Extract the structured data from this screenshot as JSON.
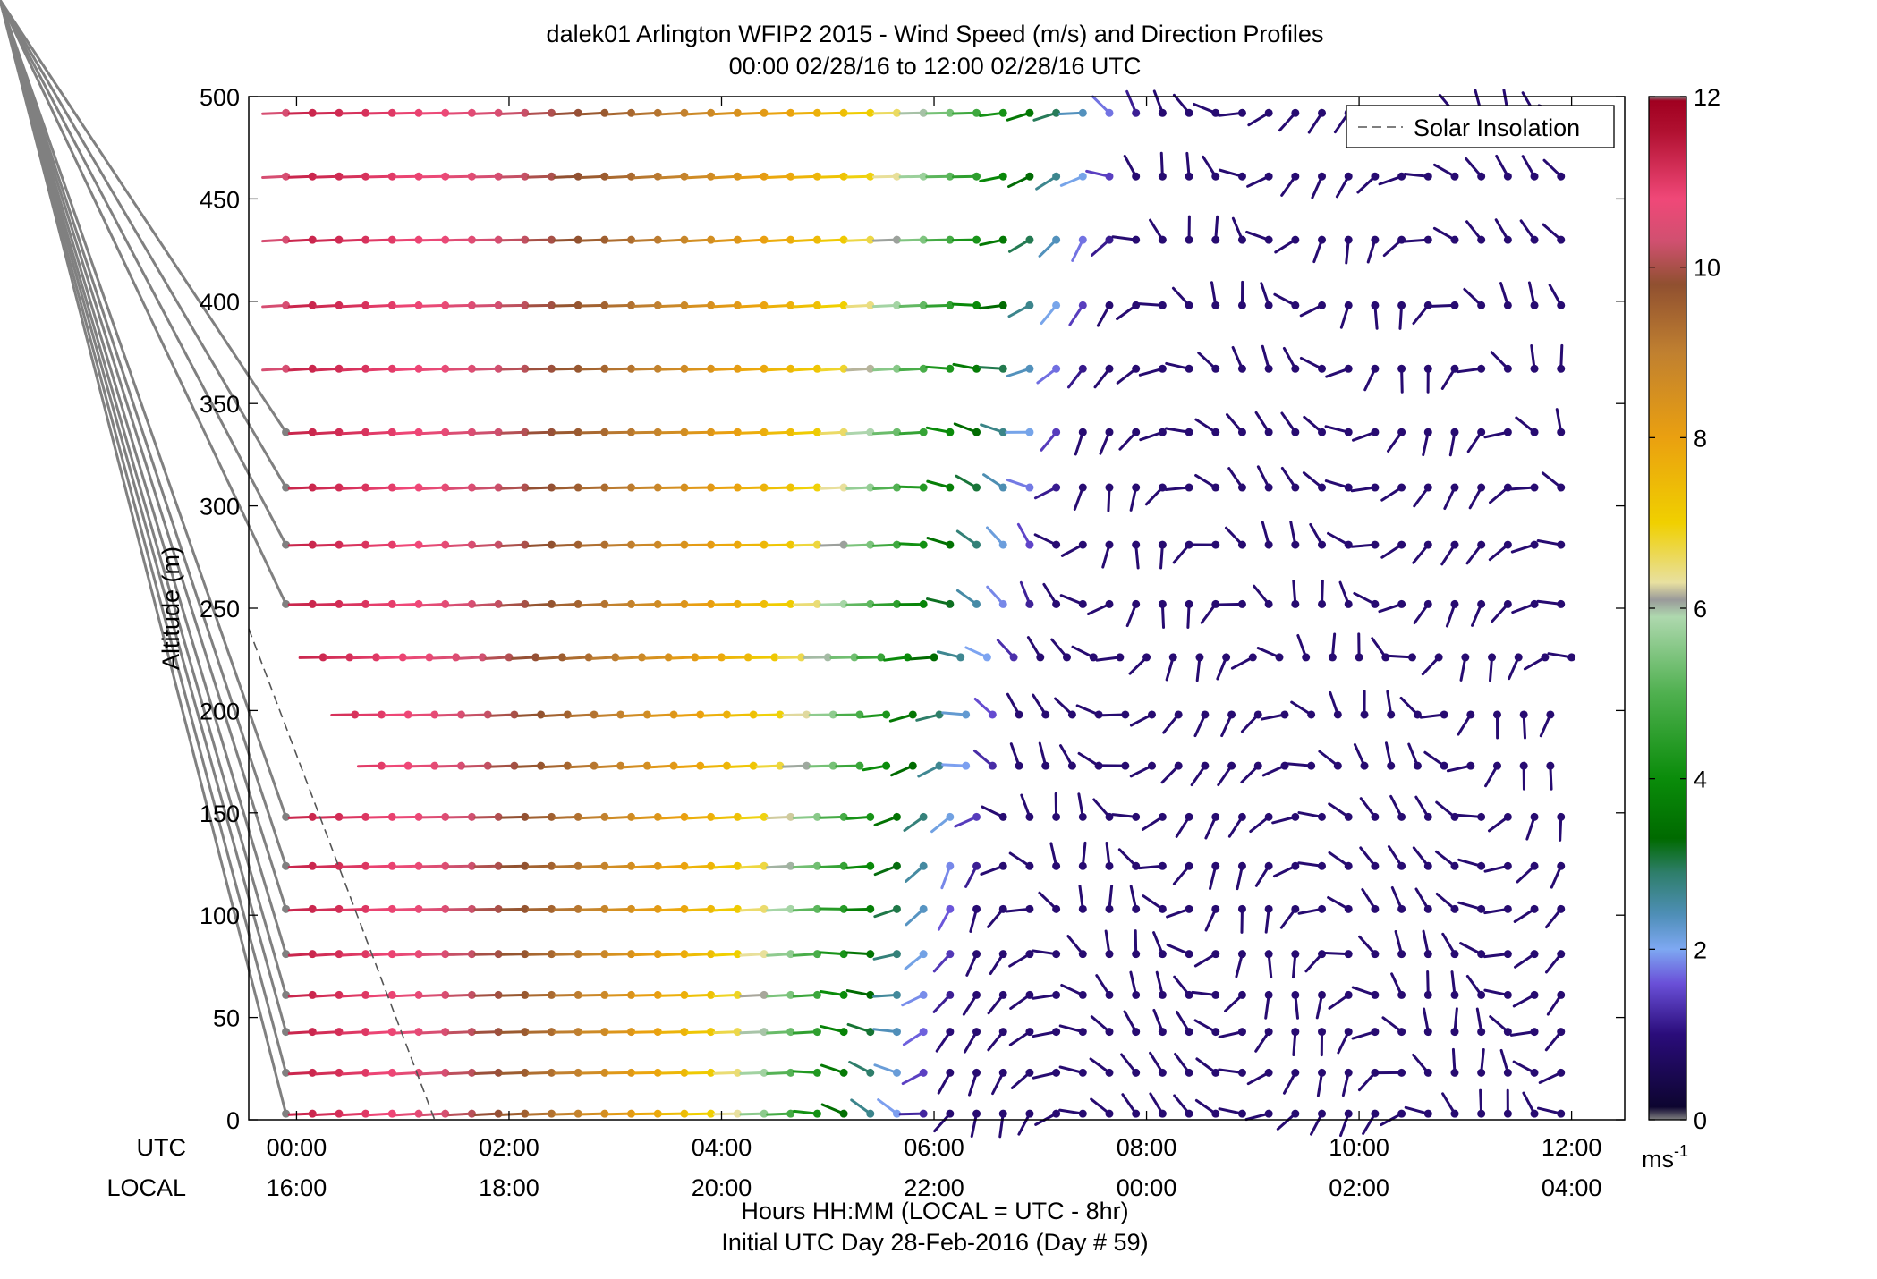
{
  "chart_data": {
    "type": "wind-barb-profile",
    "title": "dalek01 Arlington WFIP2 2015 - Wind Speed (m/s) and Direction Profiles",
    "subtitle": "00:00 02/28/16 to 12:00 02/28/16  UTC",
    "ylabel": "Altitude (m)",
    "xlabel": "Hours HH:MM  (LOCAL = UTC - 8hr)",
    "footer": "Initial UTC Day 28-Feb-2016 (Day # 59)",
    "utc_row_label": "UTC",
    "local_row_label": "LOCAL",
    "x_ticks_utc": [
      "00:00",
      "02:00",
      "04:00",
      "06:00",
      "08:00",
      "10:00",
      "12:00"
    ],
    "x_ticks_local": [
      "16:00",
      "18:00",
      "20:00",
      "22:00",
      "00:00",
      "02:00",
      "04:00"
    ],
    "x_tick_hours": [
      0,
      2,
      4,
      6,
      8,
      10,
      12
    ],
    "xlim_hours": [
      -0.45,
      12.5
    ],
    "y_ticks": [
      0,
      50,
      100,
      150,
      200,
      250,
      300,
      350,
      400,
      450,
      500
    ],
    "ylim": [
      0,
      500
    ],
    "colorbar": {
      "ticks": [
        0,
        2,
        4,
        6,
        8,
        10,
        12
      ],
      "unit_label": "ms-1",
      "range": [
        0,
        12
      ],
      "stops": [
        {
          "v": 0,
          "color": "#808080"
        },
        {
          "v": 0.15,
          "color": "#0d0530"
        },
        {
          "v": 1.0,
          "color": "#2a0c7a"
        },
        {
          "v": 1.6,
          "color": "#6a50d8"
        },
        {
          "v": 2.0,
          "color": "#7ea8f2"
        },
        {
          "v": 2.4,
          "color": "#4f8fb8"
        },
        {
          "v": 2.9,
          "color": "#2e7e6a"
        },
        {
          "v": 3.3,
          "color": "#006a00"
        },
        {
          "v": 4.0,
          "color": "#0a8c0a"
        },
        {
          "v": 5.0,
          "color": "#4fb04f"
        },
        {
          "v": 5.9,
          "color": "#aed8ae"
        },
        {
          "v": 6.1,
          "color": "#9a9a9a"
        },
        {
          "v": 6.3,
          "color": "#e8e0a0"
        },
        {
          "v": 7.0,
          "color": "#f0d000"
        },
        {
          "v": 8.0,
          "color": "#eaa010"
        },
        {
          "v": 9.0,
          "color": "#c08030"
        },
        {
          "v": 9.8,
          "color": "#905030"
        },
        {
          "v": 10.3,
          "color": "#d05070"
        },
        {
          "v": 10.8,
          "color": "#f04878"
        },
        {
          "v": 11.6,
          "color": "#b01030"
        },
        {
          "v": 11.95,
          "color": "#a00020"
        },
        {
          "v": 12,
          "color": "#808080"
        }
      ]
    },
    "legend": {
      "label": "Solar Insolation",
      "position": "top-right"
    },
    "solar_insolation_line": {
      "x": [
        -0.45,
        1.3
      ],
      "y": [
        240,
        0
      ]
    },
    "altitudes": [
      3,
      23,
      43,
      61,
      81,
      103,
      124,
      148,
      173,
      198,
      226,
      252,
      281,
      309,
      336,
      367,
      398,
      430,
      461,
      492
    ],
    "profile_rule": "speed(t, z) and direction(t, z) approximated from the image",
    "grid": false
  }
}
